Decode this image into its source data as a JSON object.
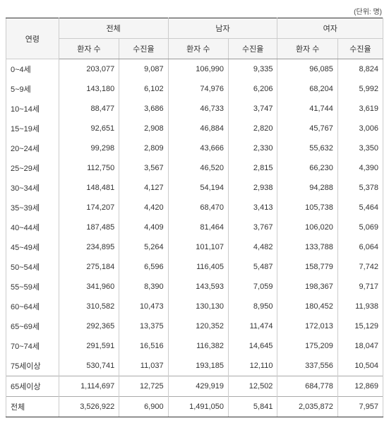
{
  "unit_label": "(단위: 명)",
  "header": {
    "age": "연령",
    "groups": [
      "전체",
      "남자",
      "여자"
    ],
    "sub": [
      "환자 수",
      "수진율"
    ]
  },
  "rows": [
    {
      "age": "0~4세",
      "t_p": "203,077",
      "t_r": "9,087",
      "m_p": "106,990",
      "m_r": "9,335",
      "f_p": "96,085",
      "f_r": "8,824"
    },
    {
      "age": "5~9세",
      "t_p": "143,180",
      "t_r": "6,102",
      "m_p": "74,976",
      "m_r": "6,206",
      "f_p": "68,204",
      "f_r": "5,992"
    },
    {
      "age": "10~14세",
      "t_p": "88,477",
      "t_r": "3,686",
      "m_p": "46,733",
      "m_r": "3,747",
      "f_p": "41,744",
      "f_r": "3,619"
    },
    {
      "age": "15~19세",
      "t_p": "92,651",
      "t_r": "2,908",
      "m_p": "46,884",
      "m_r": "2,820",
      "f_p": "45,767",
      "f_r": "3,006"
    },
    {
      "age": "20~24세",
      "t_p": "99,298",
      "t_r": "2,809",
      "m_p": "43,666",
      "m_r": "2,330",
      "f_p": "55,632",
      "f_r": "3,350"
    },
    {
      "age": "25~29세",
      "t_p": "112,750",
      "t_r": "3,567",
      "m_p": "46,520",
      "m_r": "2,815",
      "f_p": "66,230",
      "f_r": "4,390"
    },
    {
      "age": "30~34세",
      "t_p": "148,481",
      "t_r": "4,127",
      "m_p": "54,194",
      "m_r": "2,938",
      "f_p": "94,288",
      "f_r": "5,378"
    },
    {
      "age": "35~39세",
      "t_p": "174,207",
      "t_r": "4,420",
      "m_p": "68,470",
      "m_r": "3,413",
      "f_p": "105,738",
      "f_r": "5,464"
    },
    {
      "age": "40~44세",
      "t_p": "187,485",
      "t_r": "4,409",
      "m_p": "81,464",
      "m_r": "3,767",
      "f_p": "106,020",
      "f_r": "5,069"
    },
    {
      "age": "45~49세",
      "t_p": "234,895",
      "t_r": "5,264",
      "m_p": "101,107",
      "m_r": "4,482",
      "f_p": "133,788",
      "f_r": "6,064"
    },
    {
      "age": "50~54세",
      "t_p": "275,184",
      "t_r": "6,596",
      "m_p": "116,405",
      "m_r": "5,487",
      "f_p": "158,779",
      "f_r": "7,742"
    },
    {
      "age": "55~59세",
      "t_p": "341,960",
      "t_r": "8,390",
      "m_p": "143,593",
      "m_r": "7,059",
      "f_p": "198,367",
      "f_r": "9,717"
    },
    {
      "age": "60~64세",
      "t_p": "310,582",
      "t_r": "10,473",
      "m_p": "130,130",
      "m_r": "8,950",
      "f_p": "180,452",
      "f_r": "11,938"
    },
    {
      "age": "65~69세",
      "t_p": "292,365",
      "t_r": "13,375",
      "m_p": "120,352",
      "m_r": "11,474",
      "f_p": "172,013",
      "f_r": "15,129"
    },
    {
      "age": "70~74세",
      "t_p": "291,591",
      "t_r": "16,516",
      "m_p": "116,382",
      "m_r": "14,645",
      "f_p": "175,209",
      "f_r": "18,047"
    },
    {
      "age": "75세이상",
      "t_p": "530,741",
      "t_r": "11,037",
      "m_p": "193,185",
      "m_r": "12,110",
      "f_p": "337,556",
      "f_r": "10,504"
    }
  ],
  "footer": [
    {
      "age": "65세이상",
      "t_p": "1,114,697",
      "t_r": "12,725",
      "m_p": "429,919",
      "m_r": "12,502",
      "f_p": "684,778",
      "f_r": "12,869"
    },
    {
      "age": "전체",
      "t_p": "3,526,922",
      "t_r": "6,900",
      "m_p": "1,491,050",
      "m_r": "5,841",
      "f_p": "2,035,872",
      "f_r": "7,957"
    }
  ]
}
